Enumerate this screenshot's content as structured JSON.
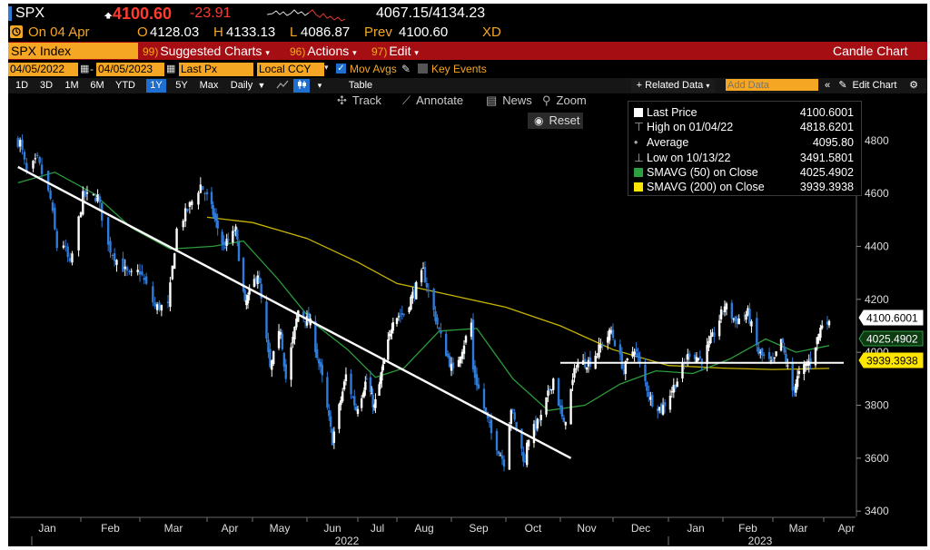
{
  "header": {
    "ticker": "SPX",
    "price": "4100.60",
    "change": "-23.91",
    "range": "4067.15/4134.23",
    "date_label": "On 04 Apr",
    "open_label": "O",
    "open": "4128.03",
    "high_label": "H",
    "high": "4133.13",
    "low_label": "L",
    "low": "4086.87",
    "prev_label": "Prev",
    "prev": "4100.60",
    "exch": "XD"
  },
  "tabs": {
    "security": "SPX Index",
    "suggested_num": "99)",
    "suggested": "Suggested Charts",
    "actions_num": "96)",
    "actions": "Actions",
    "edit_num": "97)",
    "edit": "Edit",
    "chart_type": "Candle Chart"
  },
  "controls": {
    "start_date": "04/05/2022",
    "end_date": "04/05/2023",
    "field": "Last Px",
    "currency": "Local CCY",
    "mov_avgs": "Mov Avgs",
    "key_events": "Key Events"
  },
  "periods": [
    "1D",
    "3D",
    "1M",
    "6M",
    "YTD",
    "1Y",
    "5Y",
    "Max"
  ],
  "active_period": "1Y",
  "frequency": "Daily",
  "table_label": "Table",
  "related_data": "+ Related Data",
  "add_data_placeholder": "Add Data",
  "edit_chart": "Edit Chart",
  "tools": {
    "track": "Track",
    "annotate": "Annotate",
    "news": "News",
    "zoom": "Zoom",
    "reset": "Reset"
  },
  "legend": [
    {
      "label": "Last Price",
      "value": "4100.6001",
      "marker": "#ffffff"
    },
    {
      "label": "High on 01/04/22",
      "value": "4818.6201",
      "marker": "high"
    },
    {
      "label": "Average",
      "value": "4095.80",
      "marker": "avg"
    },
    {
      "label": "Low on 10/13/22",
      "value": "3491.5801",
      "marker": "low"
    },
    {
      "label": "SMAVG (50)  on Close",
      "value": "4025.4902",
      "marker": "#2ea043"
    },
    {
      "label": "SMAVG (200)  on Close",
      "value": "3939.3938",
      "marker": "#ffe600"
    }
  ],
  "colors": {
    "background": "#000000",
    "up_candle": "#ffffff",
    "down_candle": "#2f7bd9",
    "sma50": "#2a9d3a",
    "sma200": "#c8b400",
    "accent_amber": "#f5a623",
    "tab_bar": "#a50f14"
  },
  "chart_data": {
    "type": "candlestick",
    "ylim": [
      3380,
      4950
    ],
    "y_ticks": [
      3400,
      3600,
      3800,
      4000,
      4200,
      4400,
      4600,
      4800
    ],
    "x_months": [
      "Jan",
      "Feb",
      "Mar",
      "Apr",
      "May",
      "Jun",
      "Jul",
      "Aug",
      "Sep",
      "Oct",
      "Nov",
      "Dec",
      "Jan",
      "Feb",
      "Mar",
      "Apr"
    ],
    "x_years": [
      "2022",
      "2023"
    ],
    "price_tags": [
      {
        "label": "4100.6001",
        "value": 4100.6,
        "style": "last"
      },
      {
        "label": "4025.4902",
        "value": 4025.49,
        "style": "sma50"
      },
      {
        "label": "3939.3938",
        "value": 3939.39,
        "style": "sma200"
      }
    ],
    "close_path": [
      [
        "2022-01-03",
        4796
      ],
      [
        "2022-01-04",
        4793
      ],
      [
        "2022-01-07",
        4677
      ],
      [
        "2022-01-12",
        4726
      ],
      [
        "2022-01-18",
        4577
      ],
      [
        "2022-01-21",
        4398
      ],
      [
        "2022-01-24",
        4410
      ],
      [
        "2022-01-27",
        4326
      ],
      [
        "2022-02-02",
        4589
      ],
      [
        "2022-02-09",
        4587
      ],
      [
        "2022-02-14",
        4401
      ],
      [
        "2022-02-18",
        4349
      ],
      [
        "2022-02-24",
        4288
      ],
      [
        "2022-03-01",
        4306
      ],
      [
        "2022-03-08",
        4171
      ],
      [
        "2022-03-14",
        4173
      ],
      [
        "2022-03-18",
        4463
      ],
      [
        "2022-03-29",
        4631
      ],
      [
        "2022-04-05",
        4525
      ],
      [
        "2022-04-12",
        4397
      ],
      [
        "2022-04-20",
        4459
      ],
      [
        "2022-04-26",
        4175
      ],
      [
        "2022-05-04",
        4300
      ],
      [
        "2022-05-11",
        3935
      ],
      [
        "2022-05-17",
        4088
      ],
      [
        "2022-05-20",
        3901
      ],
      [
        "2022-05-27",
        4158
      ],
      [
        "2022-06-03",
        4108
      ],
      [
        "2022-06-10",
        3900
      ],
      [
        "2022-06-16",
        3667
      ],
      [
        "2022-06-24",
        3912
      ],
      [
        "2022-06-30",
        3785
      ],
      [
        "2022-07-08",
        3899
      ],
      [
        "2022-07-14",
        3790
      ],
      [
        "2022-07-22",
        3962
      ],
      [
        "2022-07-29",
        4130
      ],
      [
        "2022-08-05",
        4145
      ],
      [
        "2022-08-16",
        4305
      ],
      [
        "2022-08-19",
        4228
      ],
      [
        "2022-08-26",
        4057
      ],
      [
        "2022-09-02",
        3924
      ],
      [
        "2022-09-12",
        4110
      ],
      [
        "2022-09-13",
        3933
      ],
      [
        "2022-09-23",
        3693
      ],
      [
        "2022-09-30",
        3586
      ],
      [
        "2022-10-04",
        3791
      ],
      [
        "2022-10-12",
        3577
      ],
      [
        "2022-10-13",
        3669
      ],
      [
        "2022-10-21",
        3752
      ],
      [
        "2022-10-28",
        3901
      ],
      [
        "2022-11-03",
        3720
      ],
      [
        "2022-11-10",
        3956
      ],
      [
        "2022-11-18",
        3965
      ],
      [
        "2022-11-30",
        4080
      ],
      [
        "2022-12-07",
        3934
      ],
      [
        "2022-12-13",
        4019
      ],
      [
        "2022-12-22",
        3822
      ],
      [
        "2022-12-28",
        3783
      ],
      [
        "2023-01-06",
        3895
      ],
      [
        "2023-01-13",
        3999
      ],
      [
        "2023-01-20",
        3972
      ],
      [
        "2023-01-27",
        4070
      ],
      [
        "2023-02-02",
        4179
      ],
      [
        "2023-02-08",
        4117
      ],
      [
        "2023-02-15",
        4148
      ],
      [
        "2023-02-21",
        3997
      ],
      [
        "2023-03-01",
        3951
      ],
      [
        "2023-03-06",
        4048
      ],
      [
        "2023-03-13",
        3855
      ],
      [
        "2023-03-17",
        3917
      ],
      [
        "2023-03-24",
        3971
      ],
      [
        "2023-03-31",
        4109
      ],
      [
        "2023-04-03",
        4125
      ],
      [
        "2023-04-04",
        4101
      ]
    ],
    "sma50_path": [
      [
        "2022-01-03",
        4640
      ],
      [
        "2022-01-20",
        4680
      ],
      [
        "2022-02-07",
        4600
      ],
      [
        "2022-02-25",
        4470
      ],
      [
        "2022-03-15",
        4390
      ],
      [
        "2022-04-05",
        4400
      ],
      [
        "2022-04-25",
        4420
      ],
      [
        "2022-05-15",
        4280
      ],
      [
        "2022-06-05",
        4110
      ],
      [
        "2022-06-25",
        4010
      ],
      [
        "2022-07-15",
        3905
      ],
      [
        "2022-08-05",
        3940
      ],
      [
        "2022-08-25",
        4080
      ],
      [
        "2022-09-15",
        4090
      ],
      [
        "2022-10-05",
        3900
      ],
      [
        "2022-10-25",
        3780
      ],
      [
        "2022-11-15",
        3800
      ],
      [
        "2022-12-05",
        3880
      ],
      [
        "2022-12-25",
        3930
      ],
      [
        "2023-01-15",
        3920
      ],
      [
        "2023-02-05",
        3975
      ],
      [
        "2023-02-25",
        4050
      ],
      [
        "2023-03-15",
        4000
      ],
      [
        "2023-04-04",
        4025
      ]
    ],
    "sma200_path": [
      [
        "2022-04-01",
        4510
      ],
      [
        "2022-05-01",
        4490
      ],
      [
        "2022-06-01",
        4430
      ],
      [
        "2022-07-01",
        4340
      ],
      [
        "2022-08-01",
        4260
      ],
      [
        "2022-09-01",
        4215
      ],
      [
        "2022-10-01",
        4170
      ],
      [
        "2022-11-01",
        4100
      ],
      [
        "2022-12-01",
        4010
      ],
      [
        "2023-01-01",
        3950
      ],
      [
        "2023-02-01",
        3940
      ],
      [
        "2023-03-01",
        3935
      ],
      [
        "2023-04-04",
        3939
      ]
    ],
    "trendline_down": [
      [
        "2022-01-03",
        4700
      ],
      [
        "2022-11-07",
        3600
      ]
    ],
    "support_line": [
      [
        "2022-11-01",
        3960
      ],
      [
        "2023-04-12",
        3960
      ]
    ]
  }
}
